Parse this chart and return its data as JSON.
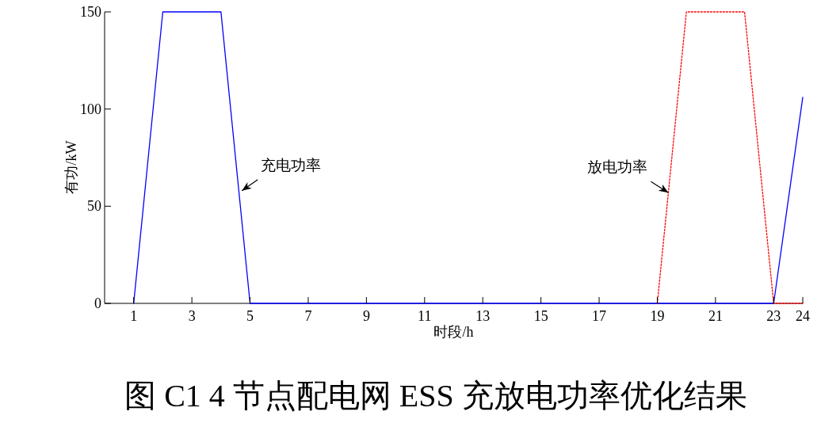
{
  "chart_data": {
    "type": "line",
    "title": "图 C1 4 节点配电网 ESS 充放电功率优化结果",
    "xlabel": "时段/h",
    "ylabel": "有功/kW",
    "x": [
      1,
      2,
      3,
      4,
      5,
      6,
      7,
      8,
      9,
      10,
      11,
      12,
      13,
      14,
      15,
      16,
      17,
      18,
      19,
      20,
      21,
      22,
      23,
      24
    ],
    "series": [
      {
        "type": "line",
        "color": "#0000ff",
        "line_style": "solid",
        "values": [
          0,
          150,
          150,
          150,
          0,
          0,
          0,
          0,
          0,
          0,
          0,
          0,
          0,
          0,
          0,
          0,
          0,
          0,
          0,
          0,
          0,
          0,
          0,
          106
        ]
      },
      {
        "type": "line",
        "color": "#ff0000",
        "line_style": "dotted",
        "values": [
          null,
          null,
          null,
          null,
          null,
          null,
          null,
          null,
          null,
          null,
          null,
          null,
          null,
          null,
          null,
          null,
          null,
          null,
          0,
          150,
          150,
          150,
          0,
          0
        ]
      }
    ],
    "xlim": [
      0,
      24
    ],
    "xticks": [
      1,
      3,
      5,
      7,
      9,
      11,
      13,
      15,
      17,
      19,
      21,
      23,
      24
    ],
    "ylim": [
      0,
      150
    ],
    "yticks": [
      0,
      50,
      100,
      150
    ],
    "grid": false,
    "annotations": [
      {
        "text": "充电功率",
        "x": 4.72,
        "y": 58
      },
      {
        "text": "放电功率",
        "x": 19.38,
        "y": 57
      }
    ]
  }
}
